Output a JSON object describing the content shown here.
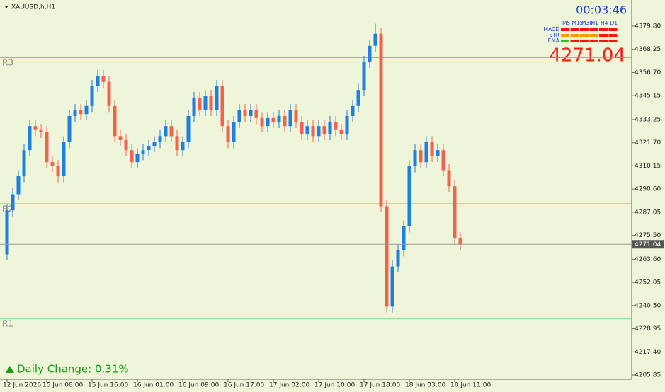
{
  "chart_data": {
    "type": "candlestick",
    "title": "XAUUSD,h,H1",
    "categories": [
      "12 Jun 2026",
      null,
      null,
      null,
      null,
      null,
      null,
      "15 Jun 08:00",
      null,
      null,
      null,
      null,
      null,
      null,
      null,
      "15 Jun 16:00",
      null,
      null,
      null,
      null,
      null,
      null,
      null,
      "16 Jun 01:00",
      null,
      null,
      null,
      null,
      null,
      null,
      null,
      "16 Jun 09:00",
      null,
      null,
      null,
      null,
      null,
      null,
      null,
      "16 Jun 17:00",
      null,
      null,
      null,
      null,
      null,
      null,
      null,
      "17 Jun 02:00",
      null,
      null,
      null,
      null,
      null,
      null,
      null,
      "17 Jun 10:00",
      null,
      null,
      null,
      null,
      null,
      null,
      null,
      "17 Jun 18:00",
      null,
      null,
      null,
      null,
      null,
      null,
      null,
      "18 Jun 03:00",
      null,
      null,
      null,
      null,
      null,
      null,
      null,
      "18 Jun 11:00",
      null
    ],
    "open": [
      4266,
      4288,
      4296,
      4305,
      4318,
      4330,
      4328,
      4327,
      4312,
      4310,
      4305,
      4322,
      4335,
      4338,
      4336,
      4340,
      4350,
      4355,
      4352,
      4340,
      4325,
      4323,
      4318,
      4312,
      4316,
      4318,
      4320,
      4322,
      4325,
      4330,
      4325,
      4318,
      4322,
      4335,
      4344,
      4338,
      4345,
      4338,
      4350,
      4330,
      4322,
      4332,
      4338,
      4335,
      4338,
      4334,
      4330,
      4334,
      4332,
      4335,
      4330,
      4338,
      4332,
      4326,
      4330,
      4325,
      4330,
      4326,
      4332,
      4328,
      4326,
      4335,
      4340,
      4348,
      4362,
      4370,
      4376,
      4290,
      4240,
      4260,
      4268,
      4280,
      4310,
      4318,
      4312,
      4322,
      4315,
      4318,
      4308,
      4300,
      4274
    ],
    "high": [
      4291,
      4299,
      4308,
      4321,
      4333,
      4333,
      4331,
      4330,
      4315,
      4313,
      4325,
      4338,
      4341,
      4341,
      4343,
      4353,
      4358,
      4358,
      4355,
      4343,
      4328,
      4326,
      4321,
      4319,
      4321,
      4323,
      4325,
      4328,
      4333,
      4333,
      4328,
      4325,
      4338,
      4347,
      4347,
      4348,
      4348,
      4353,
      4353,
      4333,
      4335,
      4341,
      4341,
      4341,
      4341,
      4337,
      4337,
      4337,
      4338,
      4338,
      4341,
      4341,
      4335,
      4333,
      4333,
      4333,
      4333,
      4335,
      4335,
      4331,
      4338,
      4343,
      4351,
      4365,
      4373,
      4381,
      4379,
      4293,
      4263,
      4271,
      4283,
      4313,
      4321,
      4321,
      4325,
      4325,
      4321,
      4321,
      4311,
      4303,
      4277
    ],
    "low": [
      4263,
      4285,
      4293,
      4302,
      4315,
      4325,
      4324,
      4309,
      4307,
      4302,
      4302,
      4319,
      4332,
      4333,
      4333,
      4337,
      4347,
      4349,
      4337,
      4322,
      4320,
      4315,
      4309,
      4309,
      4313,
      4315,
      4317,
      4319,
      4322,
      4322,
      4315,
      4315,
      4319,
      4332,
      4335,
      4335,
      4335,
      4335,
      4327,
      4319,
      4319,
      4329,
      4332,
      4332,
      4331,
      4327,
      4327,
      4329,
      4329,
      4327,
      4327,
      4329,
      4323,
      4323,
      4322,
      4322,
      4323,
      4323,
      4325,
      4323,
      4323,
      4332,
      4337,
      4345,
      4359,
      4367,
      4287,
      4237,
      4237,
      4257,
      4265,
      4277,
      4307,
      4309,
      4309,
      4312,
      4312,
      4305,
      4297,
      4271,
      4268
    ],
    "close": [
      4288,
      4296,
      4305,
      4318,
      4330,
      4328,
      4327,
      4312,
      4310,
      4305,
      4322,
      4335,
      4338,
      4336,
      4340,
      4350,
      4355,
      4352,
      4340,
      4325,
      4323,
      4318,
      4312,
      4316,
      4318,
      4320,
      4322,
      4325,
      4330,
      4325,
      4318,
      4322,
      4335,
      4344,
      4338,
      4345,
      4338,
      4350,
      4330,
      4322,
      4332,
      4338,
      4335,
      4338,
      4334,
      4330,
      4334,
      4332,
      4335,
      4330,
      4338,
      4332,
      4326,
      4330,
      4325,
      4330,
      4326,
      4332,
      4328,
      4326,
      4335,
      4340,
      4348,
      4362,
      4370,
      4376,
      4290,
      4240,
      4260,
      4268,
      4280,
      4310,
      4318,
      4312,
      4322,
      4315,
      4318,
      4308,
      4300,
      4274,
      4271.04
    ],
    "colors": {
      "up": "#1e7fe0",
      "down": "#f2634f",
      "pivot": "#3fcf3f",
      "background": "#eef5d8"
    },
    "ylim": [
      4203.75,
      4392.85
    ],
    "yticks": [
      {
        "value": 4379.8,
        "label": "4379.80"
      },
      4368.25,
      {
        "value": 4356.7,
        "label": "4356.70"
      },
      4345.15,
      4333.25,
      {
        "value": 4321.7,
        "label": "4321.70"
      },
      4310.15,
      {
        "value": 4298.6,
        "label": "4298.60"
      },
      4287.05,
      {
        "value": 4275.5,
        "label": "4275.50"
      },
      {
        "value": 4263.6,
        "label": "4263.60"
      },
      4252.05,
      {
        "value": 4240.5,
        "label": "4240.50"
      },
      4228.95,
      {
        "value": 4217.4,
        "label": "4217.40"
      },
      4205.85
    ],
    "pivots": [
      {
        "label": "R3",
        "value": 4364.2
      },
      {
        "label": "R2",
        "value": 4291.2
      },
      {
        "label": "R1",
        "value": 4234.1
      }
    ],
    "timer": "00:03:46",
    "indicator_panel": {
      "timeframes": [
        "M5",
        "M15",
        "M30",
        "H1",
        "H4",
        "D1"
      ],
      "rows": [
        "MACD",
        "STR",
        "EMA"
      ]
    },
    "daily_change": "Daily Change: 0.31%"
  }
}
